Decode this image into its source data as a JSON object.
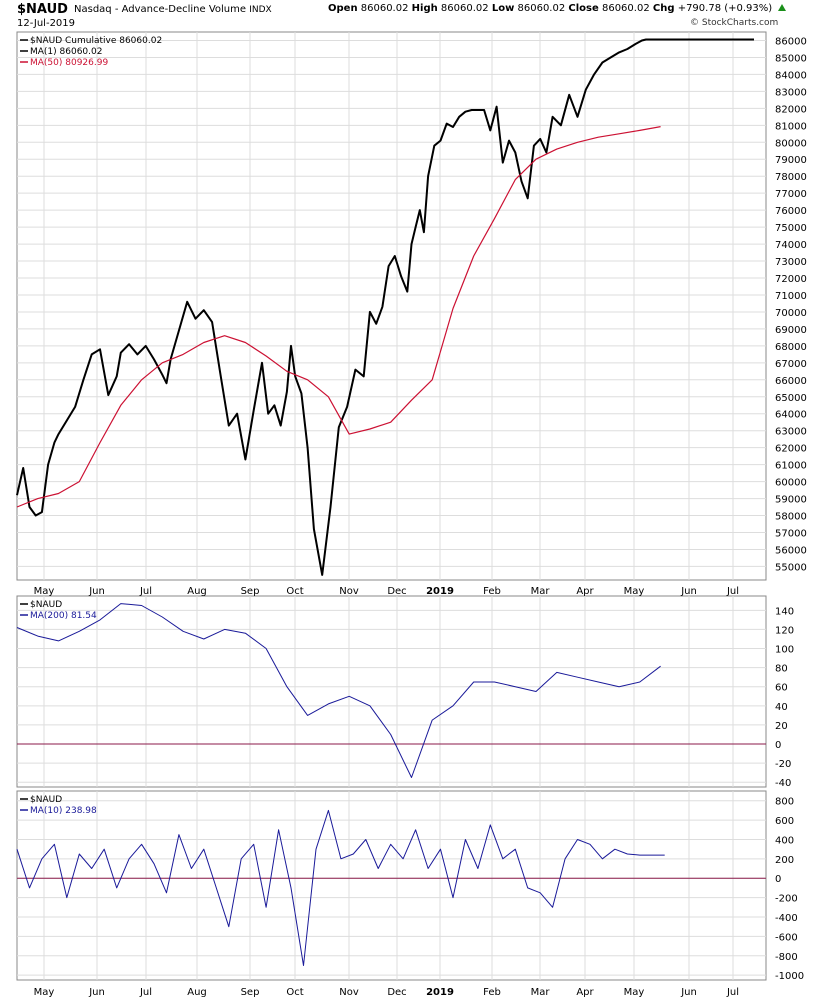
{
  "header": {
    "ticker": "$NAUD",
    "name": "Nasdaq - Advance-Decline Volume",
    "exchange": "INDX",
    "date": "12-Jul-2019",
    "open_label": "Open",
    "open": "86060.02",
    "high_label": "High",
    "high": "86060.02",
    "low_label": "Low",
    "low": "86060.02",
    "close_label": "Close",
    "close": "86060.02",
    "chg_label": "Chg",
    "chg": "+790.78 (+0.93%)",
    "source": "© StockCharts.com"
  },
  "colors": {
    "price": "#000000",
    "ma_red": "#cc1133",
    "osc_blue": "#1a1a99",
    "zero_line": "#8b1a4a",
    "grid": "#dddddd"
  },
  "x_axis_labels": [
    "May",
    "Jun",
    "Jul",
    "Aug",
    "Sep",
    "Oct",
    "Nov",
    "Dec",
    "2019",
    "Feb",
    "Mar",
    "Apr",
    "May",
    "Jun",
    "Jul"
  ],
  "chart_data": [
    {
      "type": "line",
      "legend": [
        "$NAUD Cumulative 86060.02",
        "MA(1) 86060.02",
        "MA(50) 80926.99"
      ],
      "y_ticks": [
        55000,
        56000,
        57000,
        58000,
        59000,
        60000,
        61000,
        62000,
        63000,
        64000,
        65000,
        66000,
        67000,
        68000,
        69000,
        70000,
        71000,
        72000,
        73000,
        74000,
        75000,
        76000,
        77000,
        78000,
        79000,
        80000,
        81000,
        82000,
        83000,
        84000,
        85000,
        86000
      ],
      "ylim": [
        54200,
        86500
      ],
      "series": [
        {
          "name": "$NAUD Cumulative",
          "x": [
            0,
            3,
            6,
            9,
            12,
            15,
            18,
            20,
            24,
            28,
            32,
            36,
            40,
            44,
            48,
            50,
            54,
            58,
            62,
            66,
            70,
            72,
            74,
            78,
            82,
            86,
            90,
            94,
            98,
            102,
            106,
            110,
            114,
            118,
            121,
            124,
            127,
            130,
            132,
            134,
            137,
            140,
            143,
            147,
            151,
            155,
            159,
            163,
            167,
            170,
            173,
            176,
            179,
            182,
            185,
            188,
            190,
            192,
            194,
            196,
            198,
            201,
            204,
            207,
            210,
            213,
            216,
            219,
            222,
            225,
            228,
            231,
            234,
            237,
            240,
            243,
            246,
            249,
            252,
            255,
            258,
            262,
            266,
            270,
            274,
            278,
            282,
            286,
            290,
            294,
            298,
            301,
            303,
            306,
            309,
            312,
            315,
            317,
            320,
            323,
            326,
            329,
            332,
            336,
            340,
            344,
            348,
            352,
            355
          ],
          "y": [
            59200,
            60800,
            58500,
            58000,
            58200,
            61000,
            62300,
            62800,
            63600,
            64400,
            66000,
            67500,
            67800,
            65100,
            66200,
            67600,
            68100,
            67500,
            68000,
            67200,
            66300,
            65800,
            67200,
            68900,
            70600,
            69600,
            70100,
            69400,
            66300,
            63300,
            64000,
            61300,
            64200,
            67000,
            64000,
            64500,
            63300,
            65300,
            68000,
            66200,
            65200,
            62000,
            57200,
            54500,
            58500,
            63200,
            64400,
            66600,
            66200,
            70000,
            69300,
            70300,
            72700,
            73300,
            72100,
            71200,
            74000,
            75000,
            76000,
            74700,
            78000,
            79800,
            80100,
            81100,
            80900,
            81500,
            81800,
            81900,
            81900,
            81900,
            80700,
            82100,
            78800,
            80100,
            79400,
            77700,
            76700,
            79800,
            80200,
            79400,
            81500,
            81000,
            82800,
            81500,
            83100,
            84000,
            84700,
            85000,
            85300,
            85500,
            85800,
            86000,
            86060,
            86060,
            86060,
            86060,
            86060,
            86060,
            86060,
            86060,
            86060,
            86060,
            86060,
            86060,
            86060,
            86060,
            86060,
            86060,
            86060
          ]
        },
        {
          "name": "MA(50)",
          "x": [
            0,
            10,
            20,
            30,
            40,
            50,
            60,
            70,
            80,
            90,
            100,
            110,
            120,
            130,
            140,
            150,
            160,
            170,
            180,
            190,
            200,
            210,
            220,
            230,
            240,
            250,
            260,
            270,
            280,
            290,
            300,
            310
          ],
          "y": [
            58500,
            59000,
            59300,
            60000,
            62300,
            64500,
            66000,
            67000,
            67500,
            68200,
            68600,
            68200,
            67400,
            66500,
            66000,
            65000,
            62800,
            63100,
            63500,
            64800,
            66000,
            70200,
            73300,
            75500,
            77800,
            79000,
            79600,
            80000,
            80300,
            80500,
            80700,
            80927
          ]
        }
      ]
    },
    {
      "type": "line",
      "legend": [
        "$NAUD",
        "MA(200) 81.54"
      ],
      "y_ticks": [
        -40,
        -20,
        0,
        20,
        40,
        60,
        80,
        100,
        120,
        140
      ],
      "ylim": [
        -45,
        155
      ],
      "series": [
        {
          "name": "MA(200)",
          "x": [
            0,
            10,
            20,
            30,
            40,
            50,
            60,
            70,
            80,
            90,
            100,
            110,
            120,
            130,
            140,
            150,
            160,
            170,
            180,
            190,
            200,
            210,
            220,
            230,
            240,
            250,
            260,
            270,
            280,
            290,
            300,
            310
          ],
          "y": [
            122,
            113,
            108,
            118,
            130,
            147,
            145,
            133,
            118,
            110,
            120,
            116,
            100,
            60,
            30,
            42,
            50,
            40,
            10,
            -35,
            25,
            40,
            65,
            65,
            60,
            55,
            75,
            70,
            65,
            60,
            65,
            81.54
          ]
        }
      ]
    },
    {
      "type": "line",
      "legend": [
        "$NAUD",
        "MA(10) 238.98"
      ],
      "y_ticks": [
        -1000,
        -800,
        -600,
        -400,
        -200,
        0,
        200,
        400,
        600,
        800
      ],
      "ylim": [
        -1050,
        900
      ],
      "series": [
        {
          "name": "MA(10)",
          "x": [
            0,
            6,
            12,
            18,
            24,
            30,
            36,
            42,
            48,
            54,
            60,
            66,
            72,
            78,
            84,
            90,
            96,
            102,
            108,
            114,
            120,
            126,
            132,
            138,
            144,
            150,
            156,
            162,
            168,
            174,
            180,
            186,
            192,
            198,
            204,
            210,
            216,
            222,
            228,
            234,
            240,
            246,
            252,
            258,
            264,
            270,
            276,
            282,
            288,
            294,
            300,
            306,
            312
          ],
          "y": [
            300,
            -100,
            200,
            350,
            -200,
            250,
            100,
            300,
            -100,
            200,
            350,
            150,
            -150,
            450,
            100,
            300,
            -100,
            -500,
            200,
            350,
            -300,
            500,
            -100,
            -900,
            300,
            700,
            200,
            250,
            400,
            100,
            350,
            200,
            500,
            100,
            300,
            -200,
            400,
            100,
            550,
            200,
            300,
            -100,
            -150,
            -300,
            200,
            400,
            350,
            200,
            300,
            250,
            238.98,
            238.98,
            238.98
          ]
        }
      ]
    }
  ]
}
